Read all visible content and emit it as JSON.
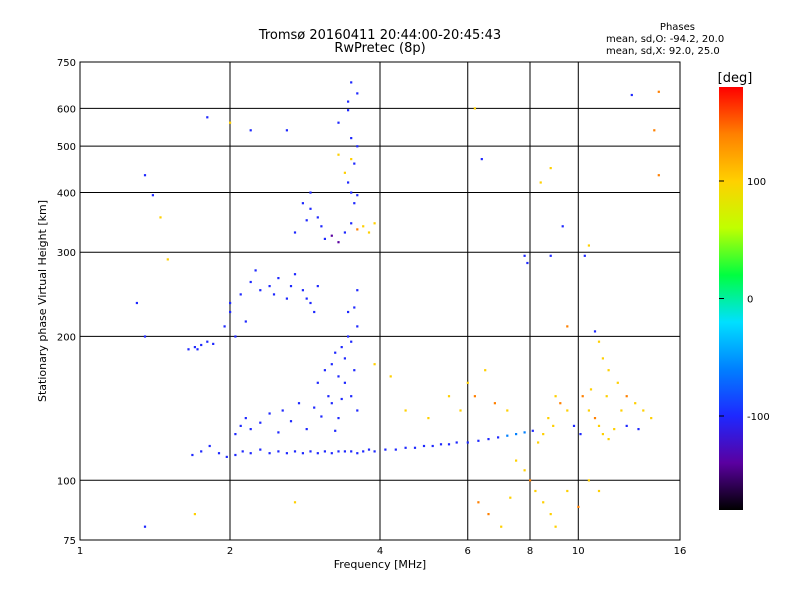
{
  "title_line1": "Tromsø 20160411 20:44:00-20:45:43",
  "title_line2": "RwPretec (8p)",
  "legend": {
    "heading": "Phases",
    "line1": "mean, sd,O: -94.2, 20.0",
    "line2": "mean, sd,X:  92.0, 25.0"
  },
  "colorbar": {
    "label": "[deg]",
    "ticks": [
      "100",
      "0",
      "-100"
    ],
    "colors": [
      "#000000",
      "#5a00a0",
      "#1e28ff",
      "#0080ff",
      "#00e0ff",
      "#00ff40",
      "#c0ff00",
      "#ffd000",
      "#ff8000",
      "#ff0000"
    ]
  },
  "chart_data": {
    "type": "scatter",
    "title": "Tromsø 20160411 20:44:00-20:45:43",
    "subtitle": "RwPretec (8p)",
    "xlabel": "Frequency [MHz]",
    "ylabel": "Stationary phase Virtual Height [km]",
    "x_scale": "log",
    "y_scale": "log",
    "xlim": [
      1,
      16
    ],
    "ylim": [
      75,
      750
    ],
    "x_ticks": [
      1,
      2,
      4,
      6,
      8,
      10,
      16
    ],
    "x_tick_labels": [
      "1",
      "2",
      "4",
      "6",
      "8",
      "10",
      "16"
    ],
    "y_ticks": [
      75,
      100,
      200,
      300,
      400,
      500,
      600,
      750
    ],
    "y_tick_labels": [
      "75",
      "100",
      "200",
      "300",
      "400",
      "500",
      "600",
      "750"
    ],
    "grid": true,
    "color_by": "phase_deg",
    "color_range": [
      -180,
      180
    ],
    "series": [
      {
        "points": [
          [
            1.68,
            113,
            -110
          ],
          [
            1.75,
            115,
            -105
          ],
          [
            1.82,
            118,
            -100
          ],
          [
            1.9,
            114,
            -95
          ],
          [
            1.97,
            112,
            -108
          ],
          [
            2.05,
            113,
            -112
          ],
          [
            2.12,
            115,
            -100
          ],
          [
            2.2,
            114,
            -90
          ],
          [
            2.3,
            116,
            -95
          ],
          [
            2.4,
            114,
            -100
          ],
          [
            2.5,
            115,
            -105
          ],
          [
            2.6,
            114,
            -110
          ],
          [
            2.7,
            115,
            -98
          ],
          [
            2.8,
            114,
            -92
          ],
          [
            2.9,
            115,
            -100
          ],
          [
            3.0,
            114,
            -105
          ],
          [
            3.1,
            115,
            -110
          ],
          [
            3.2,
            114,
            -100
          ],
          [
            3.3,
            115,
            -95
          ],
          [
            3.4,
            115,
            -100
          ],
          [
            3.5,
            115,
            -108
          ],
          [
            3.6,
            114,
            -112
          ],
          [
            3.7,
            115,
            -100
          ],
          [
            3.8,
            116,
            -95
          ],
          [
            3.9,
            115,
            -100
          ],
          [
            4.1,
            116,
            -105
          ],
          [
            4.3,
            116,
            -110
          ],
          [
            4.5,
            117,
            -100
          ],
          [
            4.7,
            117,
            -95
          ],
          [
            4.9,
            118,
            -100
          ],
          [
            5.1,
            118,
            -105
          ],
          [
            5.3,
            119,
            -110
          ],
          [
            5.5,
            119,
            -100
          ],
          [
            5.7,
            120,
            -90
          ],
          [
            6.0,
            120,
            -95
          ],
          [
            6.3,
            121,
            -100
          ],
          [
            6.6,
            122,
            -105
          ],
          [
            6.9,
            123,
            -110
          ],
          [
            7.2,
            124,
            -80
          ],
          [
            7.5,
            125,
            -70
          ],
          [
            7.8,
            126,
            -60
          ],
          [
            8.1,
            127,
            -90
          ],
          [
            2.05,
            125,
            -100
          ],
          [
            2.1,
            130,
            -90
          ],
          [
            2.15,
            135,
            -95
          ],
          [
            2.2,
            128,
            -100
          ],
          [
            2.3,
            132,
            -105
          ],
          [
            2.4,
            138,
            -100
          ],
          [
            2.5,
            126,
            -90
          ],
          [
            2.55,
            140,
            -95
          ],
          [
            2.65,
            133,
            -100
          ],
          [
            2.75,
            145,
            -110
          ],
          [
            2.85,
            128,
            -100
          ],
          [
            2.95,
            142,
            -95
          ],
          [
            3.05,
            136,
            -100
          ],
          [
            3.15,
            150,
            -105
          ],
          [
            3.25,
            127,
            -100
          ],
          [
            3.35,
            148,
            -90
          ],
          [
            3.0,
            160,
            -100
          ],
          [
            3.1,
            170,
            -105
          ],
          [
            3.2,
            175,
            -110
          ],
          [
            3.25,
            185,
            -100
          ],
          [
            3.3,
            165,
            -95
          ],
          [
            3.35,
            190,
            -100
          ],
          [
            3.4,
            180,
            -105
          ],
          [
            3.45,
            200,
            -110
          ],
          [
            3.5,
            195,
            -100
          ],
          [
            3.55,
            170,
            -90
          ],
          [
            3.6,
            210,
            -95
          ],
          [
            3.4,
            160,
            -100
          ],
          [
            3.5,
            150,
            -105
          ],
          [
            3.6,
            140,
            -100
          ],
          [
            3.2,
            145,
            -110
          ],
          [
            3.3,
            135,
            -95
          ],
          [
            3.55,
            230,
            -100
          ],
          [
            3.6,
            250,
            -105
          ],
          [
            3.45,
            225,
            -95
          ],
          [
            2.0,
            225,
            -100
          ],
          [
            2.1,
            245,
            -110
          ],
          [
            2.2,
            260,
            -105
          ],
          [
            2.3,
            250,
            -100
          ],
          [
            2.4,
            255,
            -95
          ],
          [
            2.5,
            265,
            -100
          ],
          [
            2.6,
            240,
            -105
          ],
          [
            2.7,
            270,
            -110
          ],
          [
            2.8,
            250,
            -100
          ],
          [
            2.9,
            235,
            -95
          ],
          [
            3.0,
            255,
            -100
          ],
          [
            2.05,
            200,
            -110
          ],
          [
            2.15,
            215,
            -100
          ],
          [
            2.25,
            275,
            -90
          ],
          [
            2.45,
            245,
            -105
          ],
          [
            2.65,
            255,
            -100
          ],
          [
            2.85,
            240,
            -95
          ],
          [
            2.95,
            225,
            -100
          ],
          [
            1.95,
            210,
            -110
          ],
          [
            2.0,
            235,
            -100
          ],
          [
            1.65,
            188,
            -120
          ],
          [
            1.7,
            190,
            -115
          ],
          [
            1.75,
            192,
            -110
          ],
          [
            1.8,
            195,
            -105
          ],
          [
            1.85,
            193,
            -115
          ],
          [
            1.72,
            188,
            -120
          ],
          [
            2.9,
            370,
            -100
          ],
          [
            3.0,
            355,
            -105
          ],
          [
            3.05,
            340,
            -95
          ],
          [
            3.1,
            320,
            -120
          ],
          [
            3.2,
            325,
            -130
          ],
          [
            3.3,
            315,
            -125
          ],
          [
            3.4,
            330,
            -110
          ],
          [
            3.5,
            345,
            -100
          ],
          [
            3.55,
            380,
            -90
          ],
          [
            3.6,
            395,
            -95
          ],
          [
            3.5,
            400,
            -100
          ],
          [
            3.45,
            420,
            -105
          ],
          [
            3.55,
            460,
            -100
          ],
          [
            3.6,
            500,
            -95
          ],
          [
            3.5,
            520,
            -110
          ],
          [
            2.85,
            350,
            -100
          ],
          [
            2.8,
            380,
            -90
          ],
          [
            3.6,
            335,
            120
          ],
          [
            3.7,
            340,
            100
          ],
          [
            3.8,
            330,
            110
          ],
          [
            3.9,
            345,
            115
          ],
          [
            3.3,
            480,
            90
          ],
          [
            3.4,
            440,
            100
          ],
          [
            3.5,
            470,
            110
          ],
          [
            2.7,
            330,
            -100
          ],
          [
            2.9,
            400,
            -95
          ],
          [
            1.35,
            435,
            -110
          ],
          [
            1.4,
            395,
            -100
          ],
          [
            1.3,
            235,
            -120
          ],
          [
            1.35,
            200,
            -110
          ],
          [
            1.8,
            575,
            -100
          ],
          [
            2.0,
            560,
            90
          ],
          [
            2.2,
            540,
            -100
          ],
          [
            2.6,
            540,
            -100
          ],
          [
            3.3,
            560,
            -105
          ],
          [
            3.45,
            595,
            -95
          ],
          [
            3.6,
            645,
            -100
          ],
          [
            3.5,
            680,
            -100
          ],
          [
            3.45,
            620,
            -100
          ],
          [
            1.45,
            355,
            100
          ],
          [
            1.5,
            290,
            100
          ],
          [
            1.7,
            85,
            100
          ],
          [
            1.35,
            80,
            -100
          ],
          [
            2.7,
            90,
            100
          ],
          [
            6.2,
            600,
            100
          ],
          [
            6.4,
            470,
            -100
          ],
          [
            8.4,
            420,
            100
          ],
          [
            8.8,
            450,
            110
          ],
          [
            9.3,
            340,
            -100
          ],
          [
            10.5,
            310,
            100
          ],
          [
            12.8,
            640,
            -100
          ],
          [
            14.5,
            650,
            120
          ],
          [
            14.2,
            540,
            120
          ],
          [
            14.5,
            435,
            120
          ],
          [
            7.8,
            295,
            -100
          ],
          [
            7.9,
            285,
            -100
          ],
          [
            8.8,
            295,
            -100
          ],
          [
            10.3,
            295,
            -100
          ],
          [
            9.5,
            210,
            120
          ],
          [
            10.8,
            205,
            -100
          ],
          [
            11.0,
            195,
            100
          ],
          [
            11.2,
            180,
            110
          ],
          [
            11.5,
            170,
            90
          ],
          [
            12.0,
            160,
            100
          ],
          [
            12.5,
            150,
            120
          ],
          [
            13.0,
            145,
            100
          ],
          [
            13.5,
            140,
            110
          ],
          [
            14.0,
            135,
            90
          ],
          [
            10.5,
            140,
            100
          ],
          [
            10.8,
            135,
            120
          ],
          [
            11.0,
            130,
            110
          ],
          [
            11.2,
            125,
            100
          ],
          [
            11.5,
            122,
            90
          ],
          [
            11.8,
            128,
            100
          ],
          [
            9.0,
            150,
            100
          ],
          [
            9.2,
            145,
            120
          ],
          [
            9.5,
            140,
            110
          ],
          [
            8.7,
            135,
            100
          ],
          [
            8.9,
            130,
            90
          ],
          [
            8.5,
            125,
            110
          ],
          [
            8.3,
            120,
            100
          ],
          [
            10.2,
            150,
            120
          ],
          [
            10.6,
            155,
            100
          ],
          [
            11.4,
            150,
            110
          ],
          [
            12.2,
            140,
            100
          ],
          [
            9.8,
            130,
            -100
          ],
          [
            10.1,
            125,
            -110
          ],
          [
            12.5,
            130,
            -100
          ],
          [
            13.2,
            128,
            -95
          ],
          [
            7.5,
            110,
            100
          ],
          [
            7.8,
            105,
            110
          ],
          [
            8.0,
            100,
            120
          ],
          [
            8.2,
            95,
            100
          ],
          [
            8.5,
            90,
            110
          ],
          [
            8.8,
            85,
            100
          ],
          [
            9.0,
            80,
            110
          ],
          [
            6.3,
            90,
            130
          ],
          [
            6.6,
            85,
            120
          ],
          [
            7.0,
            80,
            110
          ],
          [
            7.3,
            92,
            100
          ],
          [
            9.5,
            95,
            100
          ],
          [
            10.0,
            88,
            120
          ],
          [
            10.5,
            100,
            110
          ],
          [
            11.0,
            95,
            100
          ],
          [
            6.0,
            160,
            100
          ],
          [
            6.2,
            150,
            120
          ],
          [
            5.5,
            150,
            100
          ],
          [
            5.8,
            140,
            110
          ],
          [
            6.5,
            170,
            100
          ],
          [
            6.8,
            145,
            120
          ],
          [
            7.2,
            140,
            100
          ],
          [
            4.5,
            140,
            100
          ],
          [
            4.2,
            165,
            110
          ],
          [
            3.9,
            175,
            100
          ],
          [
            5.0,
            135,
            110
          ]
        ]
      }
    ]
  }
}
